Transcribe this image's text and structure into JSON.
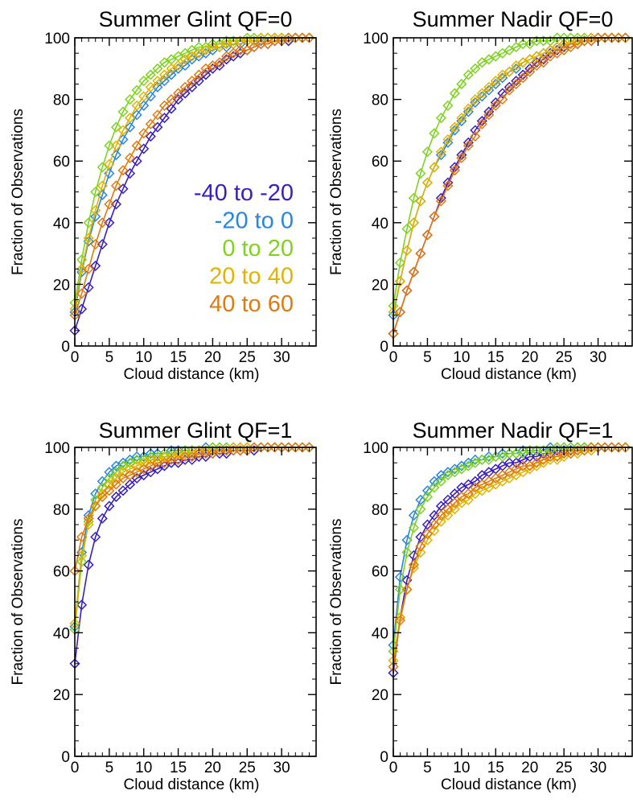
{
  "chart_data": [
    {
      "type": "line",
      "title": "Summer Glint QF=0",
      "xlabel": "Cloud distance (km)",
      "ylabel": "Fraction of Observations",
      "xlim": [
        0,
        35
      ],
      "ylim": [
        0,
        100
      ],
      "xticks": [
        "0",
        "5",
        "10",
        "15",
        "20",
        "25",
        "30"
      ],
      "yticks": [
        "0",
        "20",
        "40",
        "60",
        "80",
        "100"
      ],
      "legend": "inside-lower-right",
      "x": [
        0,
        1,
        2,
        3,
        4,
        5,
        6,
        7,
        8,
        9,
        10,
        11,
        12,
        13,
        14,
        15,
        16,
        17,
        18,
        19,
        20,
        21,
        22,
        23,
        24,
        25,
        26,
        27,
        28,
        29,
        30,
        31,
        32,
        33,
        34
      ],
      "series": [
        {
          "name": "-40 to -20",
          "color": "#3a1fc0",
          "values": [
            5,
            12,
            19,
            26,
            33,
            40,
            46,
            51,
            56,
            60,
            64,
            68,
            71,
            74,
            77,
            80,
            82,
            84,
            86,
            88,
            90,
            91,
            93,
            94,
            95,
            96,
            97,
            98,
            98,
            99,
            99,
            99,
            100,
            100,
            100
          ]
        },
        {
          "name": "-20 to 0",
          "color": "#2a85e0",
          "values": [
            11,
            24,
            34,
            42,
            49,
            56,
            62,
            67,
            71,
            75,
            78,
            81,
            84,
            86,
            88,
            90,
            91,
            93,
            94,
            95,
            96,
            97,
            97,
            98,
            98,
            99,
            99,
            99,
            100,
            100,
            100,
            100,
            100,
            100,
            100
          ]
        },
        {
          "name": "0 to 20",
          "color": "#7ed321",
          "values": [
            14,
            28,
            40,
            50,
            58,
            65,
            71,
            76,
            80,
            83,
            86,
            88,
            90,
            92,
            93,
            94,
            95,
            96,
            97,
            97,
            98,
            98,
            99,
            99,
            99,
            100,
            100,
            100,
            100,
            100,
            100,
            100,
            100,
            100,
            100
          ]
        },
        {
          "name": "20 to 40",
          "color": "#e0b400",
          "values": [
            12,
            25,
            35,
            44,
            52,
            59,
            65,
            70,
            74,
            78,
            81,
            84,
            86,
            88,
            90,
            91,
            93,
            94,
            95,
            96,
            97,
            97,
            98,
            98,
            99,
            99,
            99,
            100,
            100,
            100,
            100,
            100,
            100,
            100,
            100
          ]
        },
        {
          "name": "40 to 60",
          "color": "#e07a10",
          "values": [
            10,
            17,
            25,
            33,
            40,
            46,
            52,
            57,
            61,
            65,
            69,
            72,
            75,
            78,
            80,
            82,
            84,
            86,
            88,
            90,
            91,
            92,
            94,
            95,
            96,
            96,
            97,
            98,
            98,
            99,
            99,
            100,
            100,
            100,
            100
          ]
        }
      ]
    },
    {
      "type": "line",
      "title": "Summer Nadir QF=0",
      "xlabel": "Cloud distance (km)",
      "ylabel": "Fraction of Observations",
      "xlim": [
        0,
        35
      ],
      "ylim": [
        0,
        100
      ],
      "xticks": [
        "0",
        "5",
        "10",
        "15",
        "20",
        "25",
        "30"
      ],
      "yticks": [
        "0",
        "20",
        "40",
        "60",
        "80",
        "100"
      ],
      "x": [
        0,
        1,
        2,
        3,
        4,
        5,
        6,
        7,
        8,
        9,
        10,
        11,
        12,
        13,
        14,
        15,
        16,
        17,
        18,
        19,
        20,
        21,
        22,
        23,
        24,
        25,
        26,
        27,
        28,
        29,
        30,
        31,
        32,
        33,
        34
      ],
      "series": [
        {
          "name": "-40 to -20",
          "color": "#3a1fc0",
          "values": [
            4,
            11,
            18,
            24,
            30,
            36,
            42,
            48,
            53,
            58,
            62,
            66,
            70,
            73,
            76,
            79,
            82,
            84,
            86,
            88,
            90,
            92,
            93,
            95,
            96,
            97,
            98,
            98,
            99,
            99,
            100,
            100,
            100,
            100,
            100
          ]
        },
        {
          "name": "-20 to 0",
          "color": "#2a85e0",
          "values": [
            10,
            21,
            31,
            40,
            47,
            53,
            58,
            62,
            66,
            70,
            73,
            76,
            79,
            81,
            83,
            85,
            87,
            89,
            90,
            92,
            93,
            94,
            95,
            96,
            97,
            98,
            98,
            99,
            99,
            100,
            100,
            100,
            100,
            100,
            100
          ]
        },
        {
          "name": "0 to 20",
          "color": "#7ed321",
          "values": [
            13,
            27,
            38,
            48,
            56,
            63,
            69,
            74,
            78,
            82,
            85,
            88,
            90,
            92,
            93,
            94,
            95,
            96,
            97,
            98,
            98,
            99,
            99,
            99,
            100,
            100,
            100,
            100,
            100,
            100,
            100,
            100,
            100,
            100,
            100
          ]
        },
        {
          "name": "20 to 40",
          "color": "#e0b400",
          "values": [
            11,
            21,
            31,
            40,
            47,
            53,
            58,
            63,
            67,
            71,
            74,
            77,
            80,
            82,
            84,
            86,
            88,
            89,
            91,
            92,
            93,
            94,
            95,
            96,
            97,
            98,
            98,
            99,
            99,
            100,
            100,
            100,
            100,
            100,
            100
          ]
        },
        {
          "name": "40 to 60",
          "color": "#e07a10",
          "values": [
            4,
            11,
            18,
            24,
            30,
            36,
            42,
            47,
            52,
            57,
            61,
            65,
            68,
            72,
            75,
            78,
            80,
            83,
            85,
            87,
            89,
            91,
            92,
            94,
            95,
            96,
            97,
            98,
            99,
            99,
            100,
            100,
            100,
            100,
            100
          ]
        }
      ]
    },
    {
      "type": "line",
      "title": "Summer Glint QF=1",
      "xlabel": "Cloud distance (km)",
      "ylabel": "Fraction of Observations",
      "xlim": [
        0,
        35
      ],
      "ylim": [
        0,
        100
      ],
      "xticks": [
        "0",
        "5",
        "10",
        "15",
        "20",
        "25",
        "30"
      ],
      "yticks": [
        "0",
        "20",
        "40",
        "60",
        "80",
        "100"
      ],
      "x": [
        0,
        1,
        2,
        3,
        4,
        5,
        6,
        7,
        8,
        9,
        10,
        11,
        12,
        13,
        14,
        15,
        16,
        17,
        18,
        19,
        20,
        21,
        22,
        23,
        24,
        25,
        26,
        27,
        28,
        29,
        30,
        31,
        32,
        33,
        34
      ],
      "series": [
        {
          "name": "-40 to -20",
          "color": "#3a1fc0",
          "values": [
            30,
            49,
            62,
            71,
            77,
            81,
            84,
            86,
            88,
            90,
            91,
            92,
            93,
            94,
            95,
            95,
            96,
            96,
            97,
            97,
            98,
            98,
            98,
            99,
            99,
            99,
            99,
            100,
            100,
            100,
            100,
            100,
            100,
            100,
            100
          ]
        },
        {
          "name": "-20 to 0",
          "color": "#2a85e0",
          "values": [
            42,
            66,
            78,
            85,
            89,
            92,
            94,
            95,
            96,
            97,
            97,
            98,
            98,
            98,
            99,
            99,
            99,
            99,
            99,
            100,
            100,
            100,
            100,
            100,
            100,
            100,
            100,
            100,
            100,
            100,
            100,
            100,
            100,
            100,
            100
          ]
        },
        {
          "name": "0 to 20",
          "color": "#7ed321",
          "values": [
            41,
            63,
            76,
            83,
            87,
            90,
            92,
            94,
            95,
            96,
            96,
            97,
            97,
            98,
            98,
            98,
            99,
            99,
            99,
            99,
            100,
            100,
            100,
            100,
            100,
            100,
            100,
            100,
            100,
            100,
            100,
            100,
            100,
            100,
            100
          ]
        },
        {
          "name": "20 to 40",
          "color": "#e0b400",
          "values": [
            43,
            65,
            75,
            81,
            85,
            88,
            90,
            92,
            93,
            94,
            95,
            96,
            96,
            97,
            97,
            98,
            98,
            98,
            99,
            99,
            99,
            99,
            99,
            100,
            100,
            100,
            100,
            100,
            100,
            100,
            100,
            100,
            100,
            100,
            100
          ]
        },
        {
          "name": "40 to 60",
          "color": "#e07a10",
          "values": [
            60,
            71,
            77,
            81,
            84,
            86,
            88,
            90,
            91,
            92,
            93,
            94,
            95,
            95,
            96,
            96,
            97,
            97,
            98,
            98,
            98,
            99,
            99,
            99,
            99,
            99,
            100,
            100,
            100,
            100,
            100,
            100,
            100,
            100,
            100
          ]
        }
      ]
    },
    {
      "type": "line",
      "title": "Summer Nadir QF=1",
      "xlabel": "Cloud distance (km)",
      "ylabel": "Fraction of Observations",
      "xlim": [
        0,
        35
      ],
      "ylim": [
        0,
        100
      ],
      "xticks": [
        "0",
        "5",
        "10",
        "15",
        "20",
        "25",
        "30"
      ],
      "yticks": [
        "0",
        "20",
        "40",
        "60",
        "80",
        "100"
      ],
      "x": [
        0,
        1,
        2,
        3,
        4,
        5,
        6,
        7,
        8,
        9,
        10,
        11,
        12,
        13,
        14,
        15,
        16,
        17,
        18,
        19,
        20,
        21,
        22,
        23,
        24,
        25,
        26,
        27,
        28,
        29,
        30,
        31,
        32,
        33,
        34
      ],
      "series": [
        {
          "name": "-40 to -20",
          "color": "#3a1fc0",
          "values": [
            27,
            45,
            57,
            65,
            71,
            75,
            78,
            81,
            83,
            85,
            87,
            88,
            89,
            91,
            92,
            93,
            94,
            95,
            95,
            96,
            97,
            97,
            98,
            98,
            99,
            99,
            99,
            100,
            100,
            100,
            100,
            100,
            100,
            100,
            100
          ]
        },
        {
          "name": "-20 to 0",
          "color": "#2a85e0",
          "values": [
            36,
            58,
            70,
            78,
            83,
            86,
            89,
            91,
            92,
            93,
            94,
            95,
            96,
            96,
            97,
            97,
            98,
            98,
            98,
            99,
            99,
            99,
            99,
            100,
            100,
            100,
            100,
            100,
            100,
            100,
            100,
            100,
            100,
            100,
            100
          ]
        },
        {
          "name": "0 to 20",
          "color": "#7ed321",
          "values": [
            34,
            54,
            66,
            74,
            80,
            84,
            87,
            89,
            91,
            92,
            93,
            94,
            95,
            96,
            96,
            97,
            97,
            98,
            98,
            98,
            99,
            99,
            99,
            99,
            100,
            100,
            100,
            100,
            100,
            100,
            100,
            100,
            100,
            100,
            100
          ]
        },
        {
          "name": "20 to 40",
          "color": "#e0b400",
          "values": [
            31,
            45,
            54,
            61,
            66,
            70,
            73,
            76,
            78,
            80,
            82,
            83,
            85,
            86,
            87,
            88,
            89,
            90,
            91,
            92,
            93,
            94,
            95,
            96,
            96,
            97,
            98,
            98,
            99,
            99,
            100,
            100,
            100,
            100,
            100
          ]
        },
        {
          "name": "40 to 60",
          "color": "#e07a10",
          "values": [
            29,
            44,
            54,
            62,
            68,
            72,
            75,
            78,
            80,
            82,
            84,
            85,
            87,
            88,
            89,
            90,
            91,
            92,
            93,
            94,
            94,
            95,
            96,
            97,
            97,
            98,
            98,
            99,
            99,
            100,
            100,
            100,
            100,
            100,
            100
          ]
        }
      ]
    }
  ]
}
